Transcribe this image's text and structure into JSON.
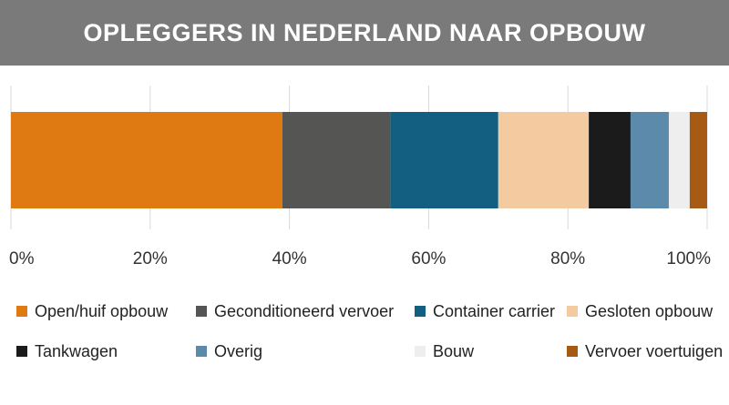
{
  "chart_data": {
    "type": "bar",
    "orientation": "horizontal",
    "stacked": true,
    "title": "OPLEGGERS IN NEDERLAND NAAR OPBOUW",
    "xlim": [
      0,
      100
    ],
    "x_ticks": [
      "0%",
      "20%",
      "40%",
      "60%",
      "80%",
      "100%"
    ],
    "grid": true,
    "legend_position": "bottom",
    "series": [
      {
        "name": "Open/huif opbouw",
        "value": 39.0,
        "color": "#df7a12"
      },
      {
        "name": "Geconditioneerd vervoer",
        "value": 15.5,
        "color": "#555553"
      },
      {
        "name": "Container carrier",
        "value": 15.5,
        "color": "#125f82"
      },
      {
        "name": "Gesloten opbouw",
        "value": 13.0,
        "color": "#f4cba0"
      },
      {
        "name": "Tankwagen",
        "value": 6.0,
        "color": "#1b1b1b"
      },
      {
        "name": "Overig",
        "value": 5.5,
        "color": "#5b8aab"
      },
      {
        "name": "Bouw",
        "value": 3.0,
        "color": "#eeeeee"
      },
      {
        "name": "Vervoer voertuigen",
        "value": 2.5,
        "color": "#a65a14"
      }
    ]
  }
}
